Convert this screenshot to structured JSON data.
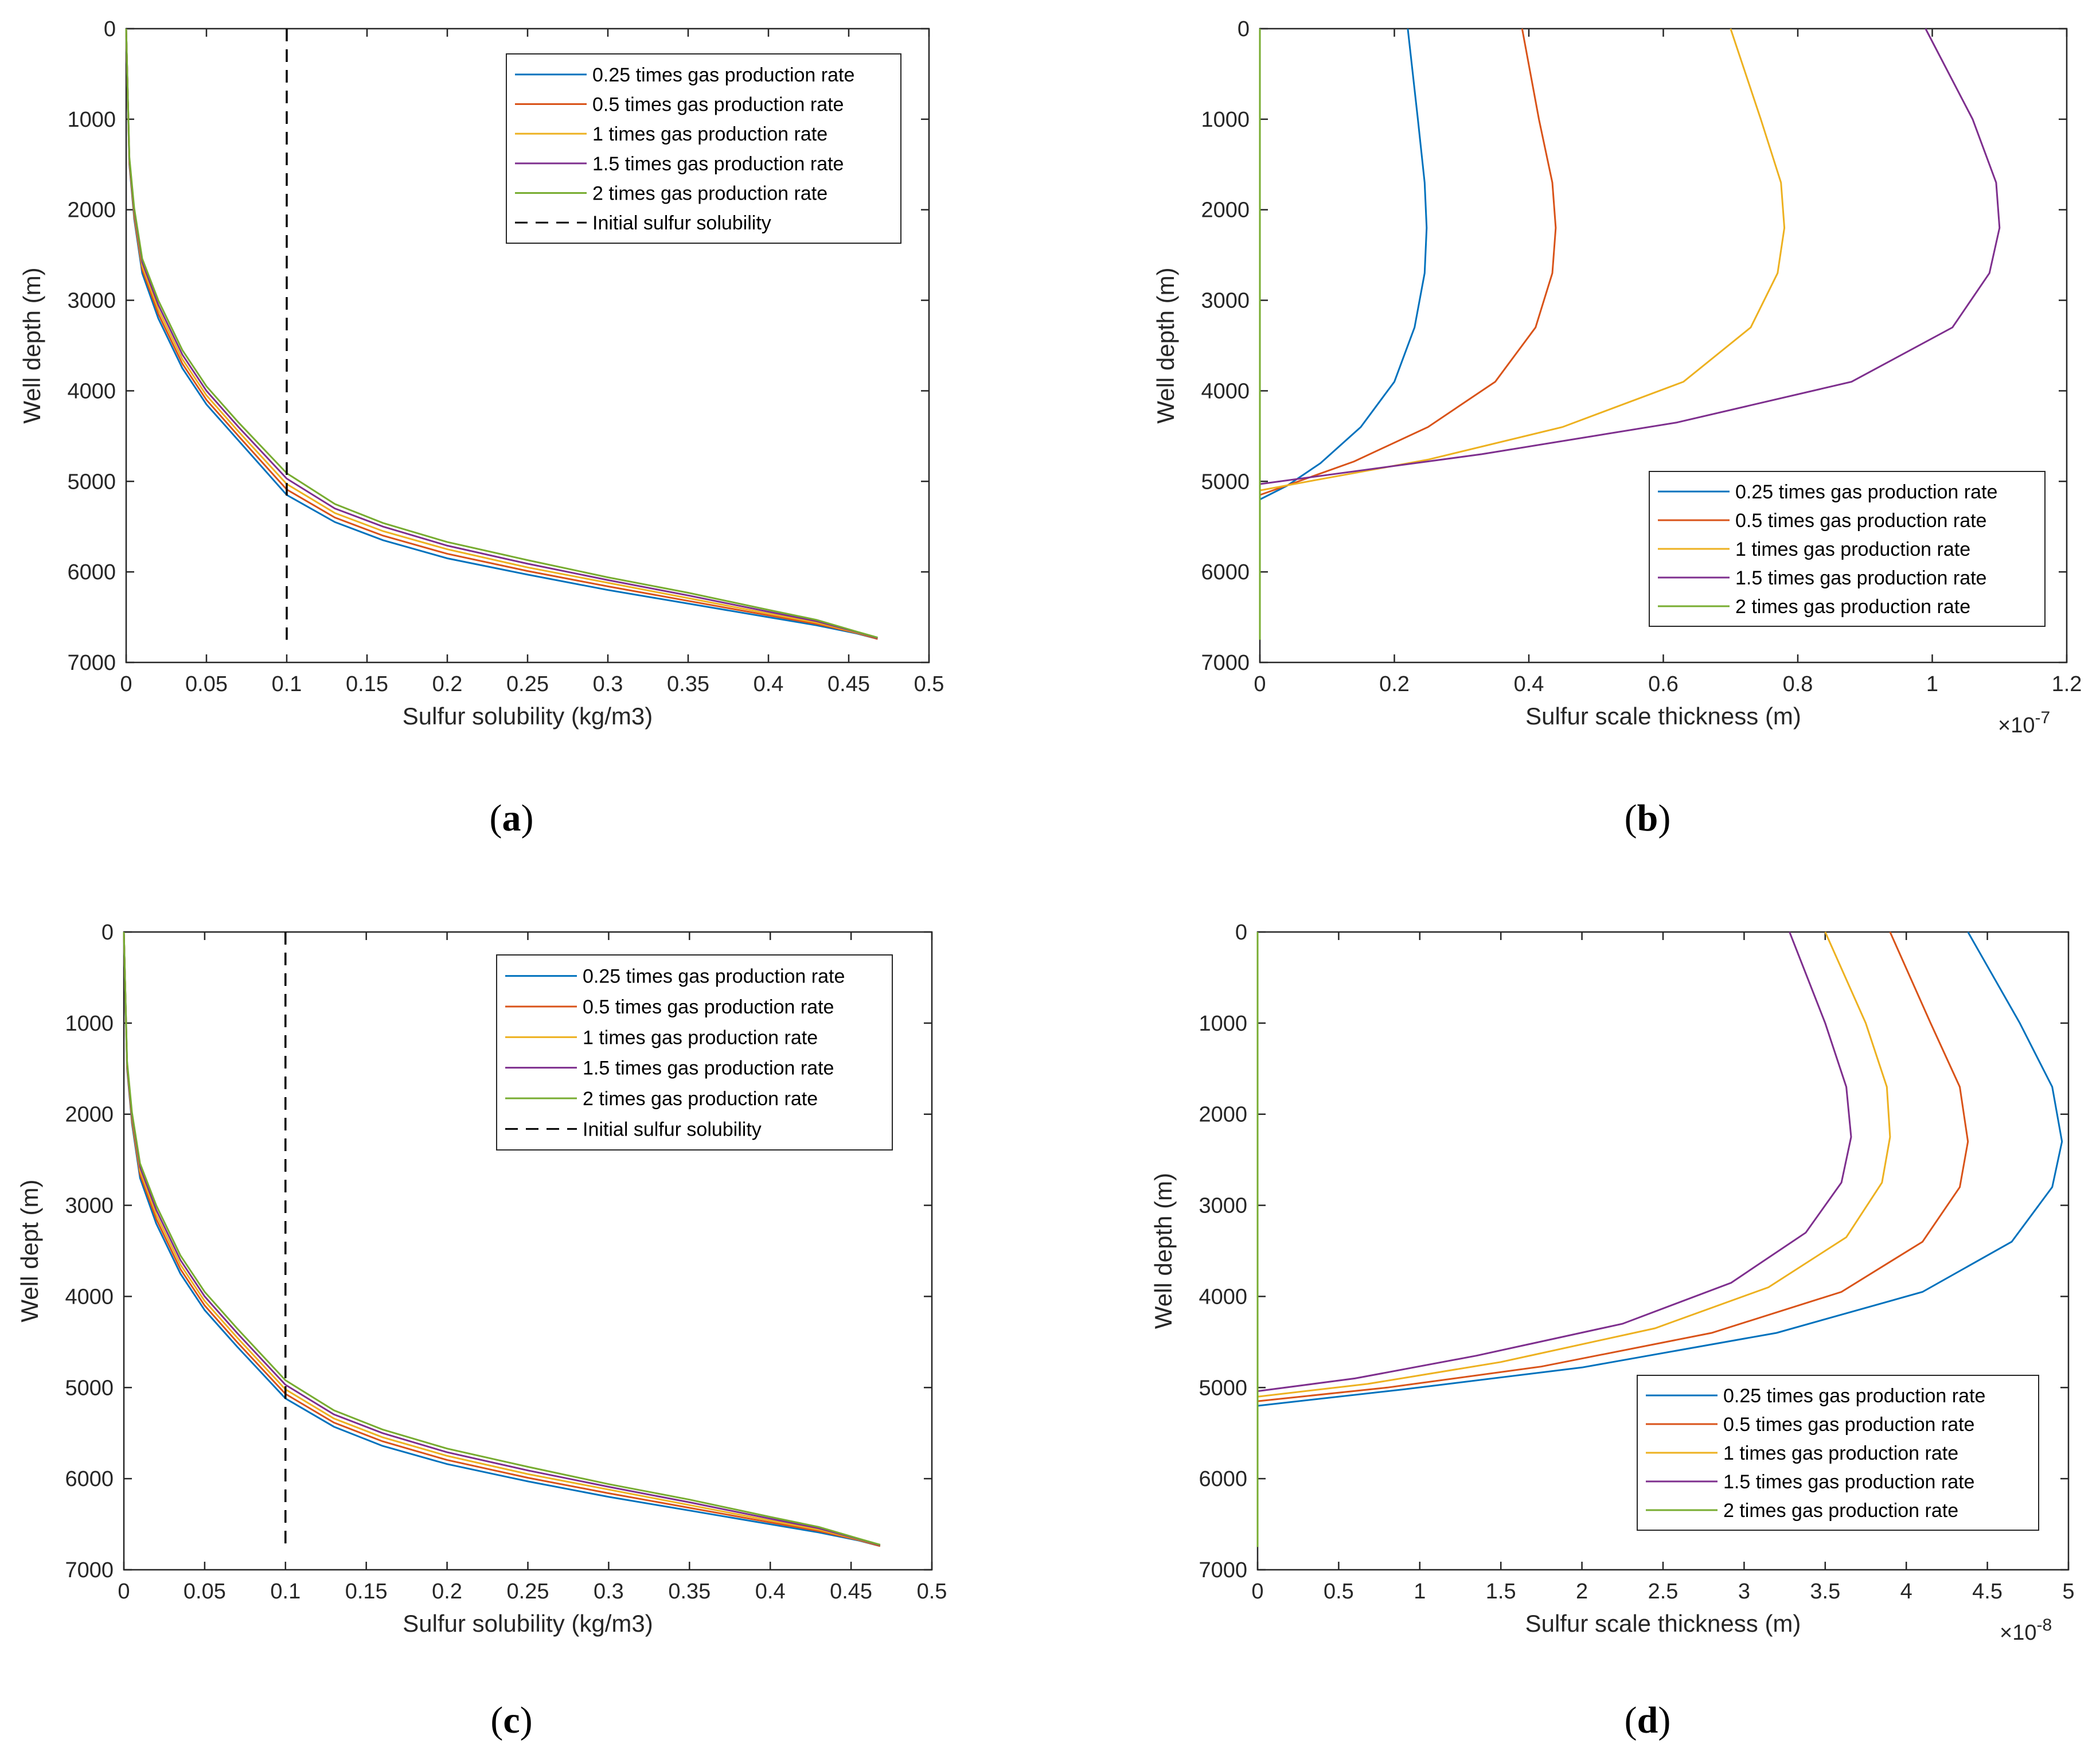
{
  "figure": {
    "captions": [
      "a",
      "b",
      "c",
      "d"
    ]
  },
  "chart_data": [
    {
      "id": "a",
      "type": "line",
      "xlabel": "Sulfur solubility (kg/m3)",
      "ylabel": "Well depth (m)",
      "xlim": [
        0,
        0.5
      ],
      "ylim": [
        0,
        7000
      ],
      "y_reversed": true,
      "x_ticks": [
        0,
        0.05,
        0.1,
        0.15,
        0.2,
        0.25,
        0.3,
        0.35,
        0.4,
        0.45,
        0.5
      ],
      "x_tick_labels": [
        "0",
        "0.05",
        "0.1",
        "0.15",
        "0.2",
        "0.25",
        "0.3",
        "0.35",
        "0.4",
        "0.45",
        "0.5"
      ],
      "y_ticks": [
        0,
        1000,
        2000,
        3000,
        4000,
        5000,
        6000,
        7000
      ],
      "y_tick_labels": [
        "0",
        "1000",
        "2000",
        "3000",
        "4000",
        "5000",
        "6000",
        "7000"
      ],
      "legend_position": "top-right",
      "series": [
        {
          "name": "0.25 times gas production rate",
          "color": "#0072BD",
          "x": [
            0.0,
            0.002,
            0.005,
            0.01,
            0.02,
            0.035,
            0.05,
            0.07,
            0.1,
            0.13,
            0.16,
            0.2,
            0.25,
            0.3,
            0.35,
            0.4,
            0.43,
            0.455,
            0.468
          ],
          "y": [
            0,
            1500,
            2100,
            2700,
            3200,
            3750,
            4150,
            4550,
            5150,
            5450,
            5650,
            5850,
            6030,
            6200,
            6350,
            6500,
            6590,
            6680,
            6740
          ]
        },
        {
          "name": "0.5 times gas production rate",
          "color": "#D95319",
          "x": [
            0.0,
            0.002,
            0.005,
            0.01,
            0.02,
            0.035,
            0.05,
            0.07,
            0.1,
            0.13,
            0.16,
            0.2,
            0.25,
            0.3,
            0.35,
            0.4,
            0.43,
            0.455,
            0.468
          ],
          "y": [
            0,
            1480,
            2070,
            2660,
            3150,
            3700,
            4100,
            4500,
            5090,
            5400,
            5600,
            5800,
            5990,
            6160,
            6320,
            6480,
            6575,
            6675,
            6740
          ]
        },
        {
          "name": "1 times gas production rate",
          "color": "#EDB120",
          "x": [
            0.0,
            0.002,
            0.005,
            0.01,
            0.02,
            0.035,
            0.05,
            0.07,
            0.1,
            0.13,
            0.16,
            0.2,
            0.25,
            0.3,
            0.35,
            0.4,
            0.43,
            0.455,
            0.468
          ],
          "y": [
            0,
            1460,
            2040,
            2620,
            3100,
            3650,
            4050,
            4450,
            5030,
            5350,
            5550,
            5750,
            5950,
            6120,
            6290,
            6460,
            6560,
            6670,
            6730
          ]
        },
        {
          "name": "1.5 times gas production rate",
          "color": "#7E2F8E",
          "x": [
            0.0,
            0.002,
            0.005,
            0.01,
            0.02,
            0.035,
            0.05,
            0.07,
            0.1,
            0.13,
            0.16,
            0.2,
            0.25,
            0.3,
            0.35,
            0.4,
            0.43,
            0.455,
            0.468
          ],
          "y": [
            0,
            1440,
            2010,
            2580,
            3050,
            3600,
            4000,
            4400,
            4970,
            5300,
            5500,
            5710,
            5910,
            6090,
            6260,
            6440,
            6545,
            6665,
            6730
          ]
        },
        {
          "name": "2 times gas production rate",
          "color": "#77AC30",
          "x": [
            0.0,
            0.002,
            0.005,
            0.01,
            0.02,
            0.035,
            0.05,
            0.07,
            0.1,
            0.13,
            0.16,
            0.2,
            0.25,
            0.3,
            0.35,
            0.4,
            0.43,
            0.455,
            0.468
          ],
          "y": [
            0,
            1420,
            1980,
            2540,
            3000,
            3550,
            3950,
            4350,
            4910,
            5250,
            5460,
            5670,
            5870,
            6060,
            6230,
            6420,
            6530,
            6660,
            6725
          ]
        },
        {
          "name": "Initial sulfur solubility",
          "color": "#000000",
          "dashed": true,
          "x": [
            0.1,
            0.1
          ],
          "y": [
            0,
            6750
          ]
        }
      ]
    },
    {
      "id": "b",
      "type": "line",
      "xlabel": "Sulfur scale thickness (m)",
      "ylabel": "Well depth (m)",
      "xlim": [
        0,
        1.2
      ],
      "ylim": [
        0,
        7000
      ],
      "y_reversed": true,
      "x_multiplier": "×10",
      "x_exponent": "-7",
      "x_ticks": [
        0,
        0.2,
        0.4,
        0.6,
        0.8,
        1,
        1.2
      ],
      "x_tick_labels": [
        "0",
        "0.2",
        "0.4",
        "0.6",
        "0.8",
        "1",
        "1.2"
      ],
      "y_ticks": [
        0,
        1000,
        2000,
        3000,
        4000,
        5000,
        6000,
        7000
      ],
      "y_tick_labels": [
        "0",
        "1000",
        "2000",
        "3000",
        "4000",
        "5000",
        "6000",
        "7000"
      ],
      "legend_position": "bottom-right",
      "series": [
        {
          "name": "0.25 times gas production rate",
          "color": "#0072BD",
          "x": [
            0.22,
            0.235,
            0.245,
            0.248,
            0.245,
            0.23,
            0.2,
            0.15,
            0.09,
            0.04,
            0.0
          ],
          "y": [
            0,
            1000,
            1700,
            2200,
            2700,
            3300,
            3900,
            4400,
            4800,
            5050,
            5200
          ]
        },
        {
          "name": "0.5 times gas production rate",
          "color": "#D95319",
          "x": [
            0.39,
            0.415,
            0.435,
            0.44,
            0.435,
            0.41,
            0.35,
            0.25,
            0.14,
            0.05,
            0.0
          ],
          "y": [
            0,
            1000,
            1700,
            2200,
            2700,
            3300,
            3900,
            4400,
            4780,
            5020,
            5150
          ]
        },
        {
          "name": "1 times gas production rate",
          "color": "#EDB120",
          "x": [
            0.7,
            0.745,
            0.775,
            0.78,
            0.77,
            0.73,
            0.63,
            0.45,
            0.25,
            0.08,
            0.0
          ],
          "y": [
            0,
            1000,
            1700,
            2200,
            2700,
            3300,
            3900,
            4400,
            4760,
            4990,
            5100
          ]
        },
        {
          "name": "1.5 times gas production rate",
          "color": "#7E2F8E",
          "x": [
            0.99,
            1.06,
            1.095,
            1.1,
            1.085,
            1.03,
            0.88,
            0.62,
            0.33,
            0.1,
            0.0
          ],
          "y": [
            0,
            1000,
            1700,
            2200,
            2700,
            3300,
            3900,
            4350,
            4700,
            4930,
            5030
          ]
        },
        {
          "name": "2 times gas production rate",
          "color": "#77AC30",
          "x": [
            0.0,
            0.0
          ],
          "y": [
            0,
            6750
          ]
        }
      ]
    },
    {
      "id": "c",
      "type": "line",
      "xlabel": "Sulfur solubility (kg/m3)",
      "ylabel": "Well dept (m)",
      "xlim": [
        0,
        0.5
      ],
      "ylim": [
        0,
        7000
      ],
      "y_reversed": true,
      "x_ticks": [
        0,
        0.05,
        0.1,
        0.15,
        0.2,
        0.25,
        0.3,
        0.35,
        0.4,
        0.45,
        0.5
      ],
      "x_tick_labels": [
        "0",
        "0.05",
        "0.1",
        "0.15",
        "0.2",
        "0.25",
        "0.3",
        "0.35",
        "0.4",
        "0.45",
        "0.5"
      ],
      "y_ticks": [
        0,
        1000,
        2000,
        3000,
        4000,
        5000,
        6000,
        7000
      ],
      "y_tick_labels": [
        "0",
        "1000",
        "2000",
        "3000",
        "4000",
        "5000",
        "6000",
        "7000"
      ],
      "legend_position": "top-right",
      "series": [
        {
          "name": "0.25 times gas production rate",
          "color": "#0072BD",
          "x": [
            0.0,
            0.002,
            0.005,
            0.01,
            0.02,
            0.035,
            0.05,
            0.07,
            0.1,
            0.13,
            0.16,
            0.2,
            0.25,
            0.3,
            0.35,
            0.4,
            0.43,
            0.455,
            0.468
          ],
          "y": [
            0,
            1500,
            2100,
            2700,
            3200,
            3750,
            4150,
            4550,
            5120,
            5430,
            5640,
            5840,
            6030,
            6200,
            6350,
            6500,
            6590,
            6680,
            6740
          ]
        },
        {
          "name": "0.5 times gas production rate",
          "color": "#D95319",
          "x": [
            0.0,
            0.002,
            0.005,
            0.01,
            0.02,
            0.035,
            0.05,
            0.07,
            0.1,
            0.13,
            0.16,
            0.2,
            0.25,
            0.3,
            0.35,
            0.4,
            0.43,
            0.455,
            0.468
          ],
          "y": [
            0,
            1480,
            2070,
            2660,
            3150,
            3700,
            4100,
            4500,
            5070,
            5385,
            5590,
            5795,
            5990,
            6160,
            6320,
            6480,
            6575,
            6675,
            6740
          ]
        },
        {
          "name": "1 times gas production rate",
          "color": "#EDB120",
          "x": [
            0.0,
            0.002,
            0.005,
            0.01,
            0.02,
            0.035,
            0.05,
            0.07,
            0.1,
            0.13,
            0.16,
            0.2,
            0.25,
            0.3,
            0.35,
            0.4,
            0.43,
            0.455,
            0.468
          ],
          "y": [
            0,
            1460,
            2040,
            2620,
            3100,
            3650,
            4050,
            4450,
            5020,
            5340,
            5545,
            5750,
            5950,
            6120,
            6290,
            6460,
            6560,
            6670,
            6730
          ]
        },
        {
          "name": "1.5 times gas production rate",
          "color": "#7E2F8E",
          "x": [
            0.0,
            0.002,
            0.005,
            0.01,
            0.02,
            0.035,
            0.05,
            0.07,
            0.1,
            0.13,
            0.16,
            0.2,
            0.25,
            0.3,
            0.35,
            0.4,
            0.43,
            0.455,
            0.468
          ],
          "y": [
            0,
            1440,
            2010,
            2580,
            3050,
            3600,
            4000,
            4400,
            4970,
            5295,
            5500,
            5710,
            5910,
            6090,
            6260,
            6440,
            6545,
            6665,
            6730
          ]
        },
        {
          "name": "2 times gas production rate",
          "color": "#77AC30",
          "x": [
            0.0,
            0.002,
            0.005,
            0.01,
            0.02,
            0.035,
            0.05,
            0.07,
            0.1,
            0.13,
            0.16,
            0.2,
            0.25,
            0.3,
            0.35,
            0.4,
            0.43,
            0.455,
            0.468
          ],
          "y": [
            0,
            1420,
            1980,
            2540,
            3000,
            3550,
            3950,
            4350,
            4920,
            5250,
            5460,
            5670,
            5870,
            6060,
            6230,
            6420,
            6530,
            6660,
            6725
          ]
        },
        {
          "name": "Initial sulfur solubility",
          "color": "#000000",
          "dashed": true,
          "x": [
            0.1,
            0.1
          ],
          "y": [
            0,
            6750
          ]
        }
      ]
    },
    {
      "id": "d",
      "type": "line",
      "xlabel": "Sulfur scale thickness (m)",
      "ylabel": "Well depth (m)",
      "xlim": [
        0,
        5
      ],
      "ylim": [
        0,
        7000
      ],
      "y_reversed": true,
      "x_multiplier": "×10",
      "x_exponent": "-8",
      "x_ticks": [
        0,
        0.5,
        1,
        1.5,
        2,
        2.5,
        3,
        3.5,
        4,
        4.5,
        5
      ],
      "x_tick_labels": [
        "0",
        "0.5",
        "1",
        "1.5",
        "2",
        "2.5",
        "3",
        "3.5",
        "4",
        "4.5",
        "5"
      ],
      "y_ticks": [
        0,
        1000,
        2000,
        3000,
        4000,
        5000,
        6000,
        7000
      ],
      "y_tick_labels": [
        "0",
        "1000",
        "2000",
        "3000",
        "4000",
        "5000",
        "6000",
        "7000"
      ],
      "legend_position": "bottom-right",
      "series": [
        {
          "name": "0.25 times gas production rate",
          "color": "#0072BD",
          "x": [
            4.38,
            4.7,
            4.9,
            4.96,
            4.9,
            4.65,
            4.1,
            3.2,
            2.0,
            0.9,
            0.0
          ],
          "y": [
            0,
            1000,
            1700,
            2300,
            2800,
            3400,
            3950,
            4400,
            4780,
            5020,
            5200
          ]
        },
        {
          "name": "0.5 times gas production rate",
          "color": "#D95319",
          "x": [
            3.9,
            4.15,
            4.33,
            4.38,
            4.33,
            4.1,
            3.6,
            2.8,
            1.75,
            0.8,
            0.0
          ],
          "y": [
            0,
            1000,
            1700,
            2300,
            2800,
            3400,
            3950,
            4400,
            4770,
            5000,
            5150
          ]
        },
        {
          "name": "1 times gas production rate",
          "color": "#EDB120",
          "x": [
            3.5,
            3.75,
            3.88,
            3.9,
            3.85,
            3.63,
            3.15,
            2.45,
            1.5,
            0.68,
            0.0
          ],
          "y": [
            0,
            1000,
            1700,
            2250,
            2750,
            3350,
            3900,
            4350,
            4720,
            4960,
            5100
          ]
        },
        {
          "name": "1.5 times gas production rate",
          "color": "#7E2F8E",
          "x": [
            3.28,
            3.5,
            3.63,
            3.66,
            3.6,
            3.38,
            2.92,
            2.25,
            1.35,
            0.6,
            0.0
          ],
          "y": [
            0,
            1000,
            1700,
            2250,
            2750,
            3300,
            3850,
            4300,
            4650,
            4900,
            5040
          ]
        },
        {
          "name": "2 times gas production rate",
          "color": "#77AC30",
          "x": [
            0.0,
            0.0
          ],
          "y": [
            0,
            6750
          ]
        }
      ]
    }
  ]
}
